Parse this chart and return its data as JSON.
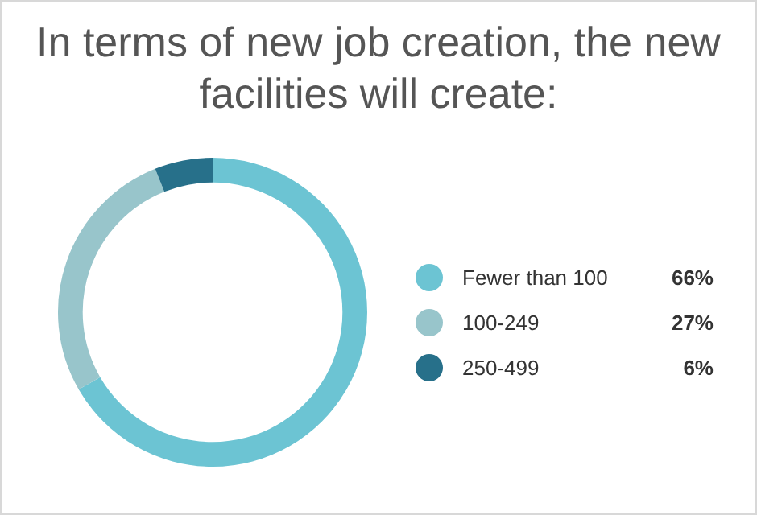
{
  "chart_data": {
    "type": "donut",
    "title": "In terms of new job creation, the new facilities will create:",
    "categories": [
      "Fewer than 100",
      "100-249",
      "250-499"
    ],
    "values": [
      66,
      27,
      6
    ],
    "colors": [
      "#6cc4d3",
      "#98c5cb",
      "#27708a"
    ],
    "value_labels": [
      "66%",
      "27%",
      "6%"
    ],
    "legend": "right"
  }
}
